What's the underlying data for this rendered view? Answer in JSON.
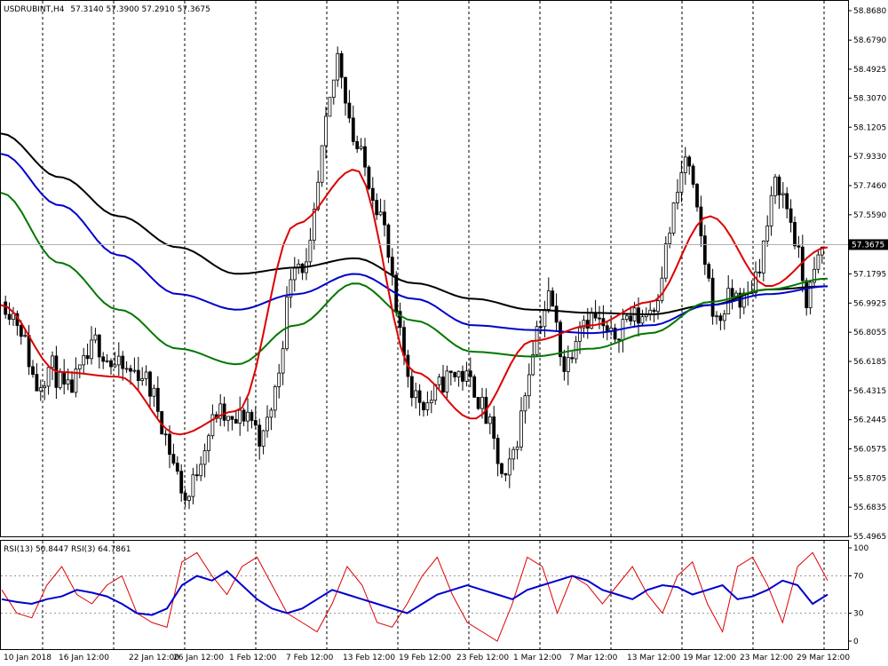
{
  "chart_data": {
    "type": "candlestick",
    "header": {
      "symbol": "USDRUBINT,H4",
      "values": "57.3140 57.3900 57.2910 57.3675"
    },
    "current_price_label": "57.3675",
    "current_price": 57.3675,
    "y_ticks": [
      "58.8680",
      "58.6790",
      "58.4925",
      "58.3070",
      "58.1205",
      "57.9330",
      "57.7460",
      "57.5590",
      "57.3675",
      "57.1795",
      "56.9925",
      "56.8055",
      "56.6185",
      "56.4315",
      "56.2445",
      "56.0575",
      "55.8705",
      "55.6835",
      "55.4965"
    ],
    "ylim": [
      55.4965,
      58.868
    ],
    "x_ticks": [
      "10 Jan 2018",
      "16 Jan 12:00",
      "22 Jan 12:00",
      "26 Jan 12:00",
      "1 Feb 12:00",
      "7 Feb 12:00",
      "13 Feb 12:00",
      "19 Feb 12:00",
      "23 Feb 12:00",
      "1 Mar 12:00",
      "7 Mar 12:00",
      "13 Mar 12:00",
      "19 Mar 12:00",
      "23 Mar 12:00",
      "29 Mar 12:00"
    ],
    "price_path": [
      57.0,
      56.85,
      56.45,
      56.6,
      56.4,
      56.55,
      56.75,
      56.6,
      56.55,
      56.55,
      56.35,
      56.0,
      55.7,
      56.05,
      56.3,
      56.2,
      56.3,
      56.1,
      56.5,
      57.3,
      57.2,
      58.0,
      58.6,
      58.05,
      57.8,
      57.5,
      56.8,
      56.4,
      56.35,
      56.5,
      56.55,
      56.45,
      56.2,
      55.8,
      56.2,
      56.8,
      57.05,
      56.55,
      56.9,
      56.9,
      56.75,
      56.9,
      56.9,
      57.0,
      57.5,
      57.95,
      57.4,
      56.85,
      57.05,
      57.0,
      57.3,
      57.8,
      57.5,
      57.0,
      57.35
    ],
    "indicators": [
      {
        "name": "MA-black",
        "color": "#000000",
        "values": [
          58.08,
          57.8,
          57.55,
          57.35,
          57.18,
          57.22,
          57.28,
          57.12,
          57.02,
          56.95,
          56.93,
          56.92,
          56.98,
          57.08,
          57.1
        ]
      },
      {
        "name": "MA-blue",
        "color": "#0000cc",
        "values": [
          57.95,
          57.62,
          57.3,
          57.05,
          56.95,
          57.05,
          57.18,
          57.02,
          56.85,
          56.82,
          56.8,
          56.85,
          56.98,
          57.05,
          57.1
        ]
      },
      {
        "name": "MA-green",
        "color": "#007700",
        "values": [
          57.7,
          57.25,
          56.95,
          56.7,
          56.6,
          56.85,
          57.12,
          56.88,
          56.68,
          56.65,
          56.7,
          56.8,
          57.0,
          57.08,
          57.15
        ]
      },
      {
        "name": "MA-red",
        "color": "#dd0000",
        "values": [
          56.98,
          56.55,
          56.52,
          56.15,
          56.3,
          57.5,
          57.85,
          56.55,
          56.25,
          56.75,
          56.85,
          57.0,
          57.55,
          57.1,
          57.35
        ]
      }
    ],
    "rsi": {
      "label": "RSI(13) 50.8447  RSI(3) 64.7861",
      "ticks": [
        "100",
        "70",
        "30",
        "0"
      ],
      "levels": [
        100,
        70,
        30,
        0
      ],
      "rsi13": [
        45,
        42,
        40,
        45,
        48,
        55,
        52,
        48,
        40,
        30,
        28,
        35,
        60,
        70,
        65,
        75,
        60,
        45,
        35,
        30,
        35,
        45,
        55,
        50,
        45,
        40,
        35,
        30,
        40,
        50,
        55,
        60,
        55,
        50,
        45,
        55,
        60,
        65,
        70,
        65,
        55,
        50,
        45,
        55,
        60,
        58,
        50,
        55,
        60,
        45,
        48,
        55,
        65,
        60,
        40,
        50
      ],
      "rsi3": [
        55,
        30,
        25,
        60,
        80,
        50,
        40,
        60,
        70,
        30,
        20,
        15,
        85,
        95,
        70,
        50,
        80,
        90,
        60,
        30,
        20,
        10,
        40,
        80,
        60,
        20,
        15,
        40,
        70,
        90,
        50,
        20,
        10,
        0,
        40,
        90,
        80,
        30,
        70,
        60,
        40,
        60,
        80,
        50,
        30,
        70,
        85,
        40,
        10,
        80,
        90,
        60,
        20,
        80,
        95,
        65
      ]
    }
  }
}
